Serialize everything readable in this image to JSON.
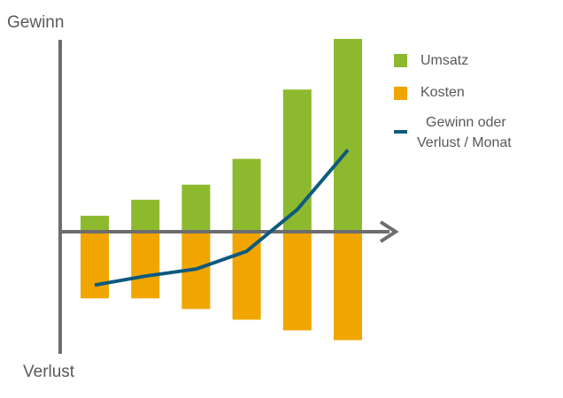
{
  "chart_data": {
    "type": "bar",
    "title": "",
    "ylabel_top": "Gewinn",
    "ylabel_bottom": "Verlust",
    "xlabel": "",
    "categories": [
      "",
      "",
      "",
      "",
      "",
      ""
    ],
    "ylim": [
      -120,
      215
    ],
    "grid": false,
    "legend_position": "top-right",
    "series": [
      {
        "name": "Umsatz",
        "kind": "bar",
        "color": "#8DB92E",
        "values": [
          18,
          36,
          53,
          82,
          160,
          217
        ]
      },
      {
        "name": "Kosten",
        "kind": "bar",
        "color": "#F0A500",
        "values": [
          -75,
          -75,
          -87,
          -99,
          -111,
          -122
        ]
      },
      {
        "name": "Gewinn oder Verlust / Monat",
        "kind": "line",
        "color": "#0E5A7E",
        "values": [
          -60,
          -50,
          -42,
          -22,
          25,
          92
        ]
      }
    ]
  },
  "legend": {
    "items": [
      {
        "label": "Umsatz",
        "color": "#8DB92E",
        "marker": "square"
      },
      {
        "label": "Kosten",
        "color": "#F0A500",
        "marker": "square"
      },
      {
        "label_lines": [
          "Gewinn oder",
          "Verlust / Monat"
        ],
        "color": "#0E5A7E",
        "marker": "dash"
      }
    ]
  },
  "axis_color": "#6D6D6D"
}
